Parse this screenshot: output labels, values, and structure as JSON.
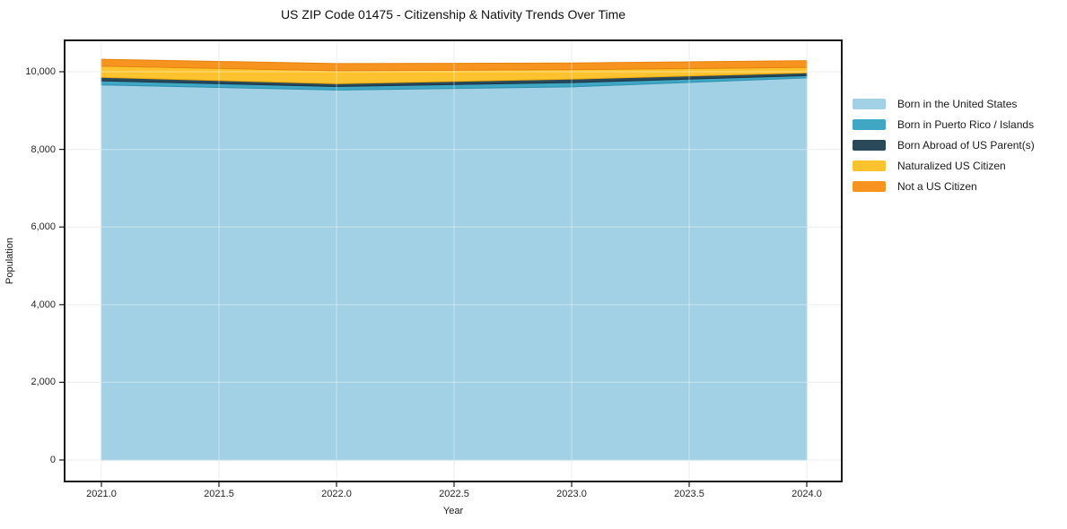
{
  "chart_data": {
    "type": "area",
    "stacked": true,
    "title": "US ZIP Code 01475 - Citizenship & Nativity Trends Over Time",
    "xlabel": "Year",
    "ylabel": "Population",
    "x": [
      2021,
      2022,
      2023,
      2024
    ],
    "series": [
      {
        "name": "Born in the United States",
        "color": "#a2d1e6",
        "edge_color": "#8bc2db",
        "values": [
          9660,
          9530,
          9610,
          9840
        ]
      },
      {
        "name": "Born in Puerto Rico / Islands",
        "color": "#3fa6c4",
        "edge_color": "#2e92b0",
        "values": [
          105,
          90,
          110,
          60
        ]
      },
      {
        "name": "Born Abroad of US Parent(s)",
        "color": "#29485a",
        "edge_color": "#1d3545",
        "values": [
          90,
          70,
          90,
          70
        ]
      },
      {
        "name": "Naturalized US Citizen",
        "color": "#fcc32e",
        "edge_color": "#e9a90f",
        "values": [
          290,
          335,
          245,
          140
        ]
      },
      {
        "name": "Not a US Citizen",
        "color": "#f7941f",
        "edge_color": "#e5820d",
        "values": [
          175,
          185,
          170,
          175
        ]
      }
    ],
    "x_ticks": [
      "2021.0",
      "2021.5",
      "2022.0",
      "2022.5",
      "2023.0",
      "2023.5",
      "2024.0"
    ],
    "y_ticks": [
      "0",
      "2,000",
      "4,000",
      "6,000",
      "8,000",
      "10,000"
    ],
    "xlim": [
      2020.84,
      2024.15
    ],
    "ylim": [
      0,
      10800
    ],
    "grid": true,
    "legend_position": "outside-right",
    "spine_color": "#1a1a1a",
    "grid_color": "#e9e9e9"
  }
}
